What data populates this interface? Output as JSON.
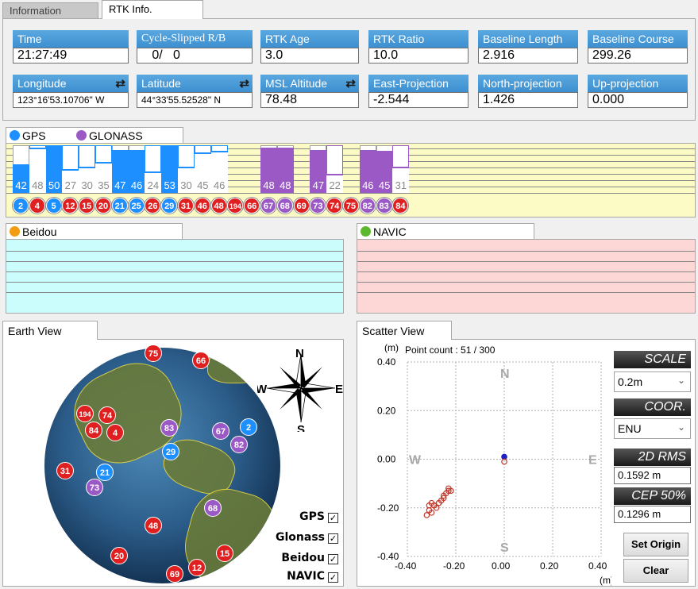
{
  "tabs": {
    "information": "Information",
    "rtk_info": "RTK  Info."
  },
  "fields": {
    "time": {
      "label": "Time",
      "value": "21:27:49"
    },
    "cycle": {
      "label": "Cycle-Slipped R/B",
      "value": "   0/   0"
    },
    "rtk_age": {
      "label": "RTK  Age",
      "value": "3.0"
    },
    "rtk_ratio": {
      "label": "RTK  Ratio",
      "value": "10.0"
    },
    "baseline_length": {
      "label": "Baseline  Length",
      "value": "2.916"
    },
    "baseline_course": {
      "label": "Baseline  Course",
      "value": "299.26"
    },
    "longitude": {
      "label": "Longitude",
      "value": "123°16'53.10706\" W"
    },
    "latitude": {
      "label": "Latitude",
      "value": "44°33'55.52528\" N"
    },
    "msl_altitude": {
      "label": "MSL Altitude",
      "value": "78.48"
    },
    "east_proj": {
      "label": "East-Projection",
      "value": "-2.544"
    },
    "north_proj": {
      "label": "North-projection",
      "value": "1.426"
    },
    "up_proj": {
      "label": "Up-projection",
      "value": "0.000"
    }
  },
  "signal_tabs": {
    "gps": "GPS",
    "glonass": "GLONASS"
  },
  "colors": {
    "gps": "#1e8fff",
    "glonass": "#9b59c6",
    "beidou": "#f39c12",
    "navic": "#5cb82c",
    "sat_red": "#e02020"
  },
  "bars": [
    {
      "snr": 42,
      "level": 0.6,
      "filled": true,
      "sys": "gps",
      "col": 0
    },
    {
      "snr": 48,
      "level": 0.95,
      "filled": false,
      "sys": "gps",
      "col": 1
    },
    {
      "snr": 50,
      "level": 1.0,
      "filled": true,
      "sys": "gps",
      "col": 2
    },
    {
      "snr": 27,
      "level": 0.5,
      "filled": false,
      "sys": "gps",
      "col": 3
    },
    {
      "snr": 30,
      "level": 0.55,
      "filled": false,
      "sys": "gps",
      "col": 4
    },
    {
      "snr": 35,
      "level": 0.65,
      "filled": false,
      "sys": "gps",
      "col": 5
    },
    {
      "snr": 47,
      "level": 0.9,
      "filled": true,
      "sys": "gps",
      "col": 6
    },
    {
      "snr": 46,
      "level": 0.9,
      "filled": true,
      "sys": "gps",
      "col": 7
    },
    {
      "snr": 24,
      "level": 0.45,
      "filled": false,
      "sys": "gps",
      "col": 8
    },
    {
      "snr": 53,
      "level": 1.0,
      "filled": true,
      "sys": "gps",
      "col": 9
    },
    {
      "snr": 30,
      "level": 0.55,
      "filled": false,
      "sys": "gps",
      "col": 10
    },
    {
      "snr": 45,
      "level": 0.85,
      "filled": false,
      "sys": "gps",
      "col": 11
    },
    {
      "snr": 46,
      "level": 0.88,
      "filled": false,
      "sys": "gps",
      "col": 12
    },
    {
      "snr": 48,
      "level": 0.95,
      "filled": true,
      "sys": "glonass",
      "col": 15
    },
    {
      "snr": 48,
      "level": 0.95,
      "filled": true,
      "sys": "glonass",
      "col": 16
    },
    {
      "snr": 47,
      "level": 0.9,
      "filled": true,
      "sys": "glonass",
      "col": 18
    },
    {
      "snr": 22,
      "level": 0.4,
      "filled": false,
      "sys": "glonass",
      "col": 19
    },
    {
      "snr": 46,
      "level": 0.9,
      "filled": true,
      "sys": "glonass",
      "col": 21
    },
    {
      "snr": 45,
      "level": 0.88,
      "filled": true,
      "sys": "glonass",
      "col": 22
    },
    {
      "snr": 31,
      "level": 0.55,
      "filled": false,
      "sys": "glonass",
      "col": 23
    }
  ],
  "sat_ids": [
    {
      "id": "2",
      "color": "gps"
    },
    {
      "id": "4",
      "color": "red"
    },
    {
      "id": "5",
      "color": "gps"
    },
    {
      "id": "12",
      "color": "red"
    },
    {
      "id": "15",
      "color": "red"
    },
    {
      "id": "20",
      "color": "red"
    },
    {
      "id": "21",
      "color": "gps"
    },
    {
      "id": "25",
      "color": "gps"
    },
    {
      "id": "26",
      "color": "red"
    },
    {
      "id": "29",
      "color": "gps"
    },
    {
      "id": "31",
      "color": "red"
    },
    {
      "id": "46",
      "color": "red"
    },
    {
      "id": "48",
      "color": "red"
    },
    {
      "id": "194",
      "color": "red"
    },
    {
      "id": "66",
      "color": "red"
    },
    {
      "id": "67",
      "color": "glonass"
    },
    {
      "id": "68",
      "color": "glonass"
    },
    {
      "id": "69",
      "color": "red"
    },
    {
      "id": "73",
      "color": "glonass"
    },
    {
      "id": "74",
      "color": "red"
    },
    {
      "id": "75",
      "color": "red"
    },
    {
      "id": "82",
      "color": "glonass"
    },
    {
      "id": "83",
      "color": "glonass"
    },
    {
      "id": "84",
      "color": "red"
    }
  ],
  "beidou_tab": "Beidou",
  "navic_tab": "NAVIC",
  "earth_view": {
    "tab": "Earth View",
    "compass": {
      "n": "N",
      "s": "S",
      "e": "E",
      "w": "W"
    },
    "sats": [
      {
        "id": "75",
        "color": "red"
      },
      {
        "id": "66",
        "color": "red"
      },
      {
        "id": "194",
        "color": "red"
      },
      {
        "id": "74",
        "color": "red"
      },
      {
        "id": "84",
        "color": "red"
      },
      {
        "id": "4",
        "color": "red"
      },
      {
        "id": "83",
        "color": "glonass"
      },
      {
        "id": "29",
        "color": "gps"
      },
      {
        "id": "67",
        "color": "glonass"
      },
      {
        "id": "2",
        "color": "gps"
      },
      {
        "id": "82",
        "color": "glonass"
      },
      {
        "id": "31",
        "color": "red"
      },
      {
        "id": "21",
        "color": "gps"
      },
      {
        "id": "73",
        "color": "glonass"
      },
      {
        "id": "68",
        "color": "glonass"
      },
      {
        "id": "48",
        "color": "red"
      },
      {
        "id": "15",
        "color": "red"
      },
      {
        "id": "20",
        "color": "red"
      },
      {
        "id": "69",
        "color": "red"
      },
      {
        "id": "12",
        "color": "red"
      }
    ],
    "filters": [
      {
        "label": "GPS",
        "checked": true
      },
      {
        "label": "Glonass",
        "checked": true
      },
      {
        "label": "Beidou",
        "checked": true
      },
      {
        "label": "NAVIC",
        "checked": true
      }
    ]
  },
  "scatter_view": {
    "tab": "Scatter View",
    "unit_label": "(m)",
    "point_count": "Point count : 51 / 300",
    "compass": {
      "n": "N",
      "s": "S",
      "e": "E",
      "w": "W"
    },
    "scale_head": "SCALE",
    "scale_value": "0.2m",
    "coor_head": "COOR.",
    "coor_value": "ENU",
    "rms_head": "2D RMS",
    "rms_value": "0.1592 m",
    "cep_head": "CEP 50%",
    "cep_value": "0.1296 m",
    "set_origin": "Set Origin",
    "clear": "Clear"
  },
  "chart_data": {
    "type": "scatter",
    "title": "",
    "xlabel": "(m)",
    "ylabel": "(m)",
    "xlim": [
      -0.4,
      0.4
    ],
    "ylim": [
      -0.4,
      0.4
    ],
    "x_ticks": [
      "-0.40",
      "-0.20",
      "0.00",
      "0.20",
      "0.40"
    ],
    "y_ticks": [
      "0.40",
      "0.20",
      "0.00",
      "-0.20",
      "-0.40"
    ],
    "grid": true,
    "series": [
      {
        "color": "#c0392b",
        "x": [
          -0.32,
          -0.31,
          -0.31,
          -0.3,
          -0.29,
          -0.28,
          -0.27,
          -0.26,
          -0.25,
          -0.24,
          -0.23,
          -0.23,
          -0.22,
          -0.25,
          -0.27,
          -0.29,
          -0.3
        ],
        "y": [
          -0.23,
          -0.21,
          -0.19,
          -0.18,
          -0.19,
          -0.2,
          -0.18,
          -0.17,
          -0.15,
          -0.14,
          -0.13,
          -0.12,
          -0.13,
          -0.16,
          -0.18,
          -0.19,
          -0.22
        ]
      },
      {
        "color": "#2020c0",
        "x": [
          0.0
        ],
        "y": [
          0.01
        ]
      },
      {
        "color": "#c0392b",
        "x": [
          0.0
        ],
        "y": [
          -0.01
        ]
      }
    ]
  }
}
